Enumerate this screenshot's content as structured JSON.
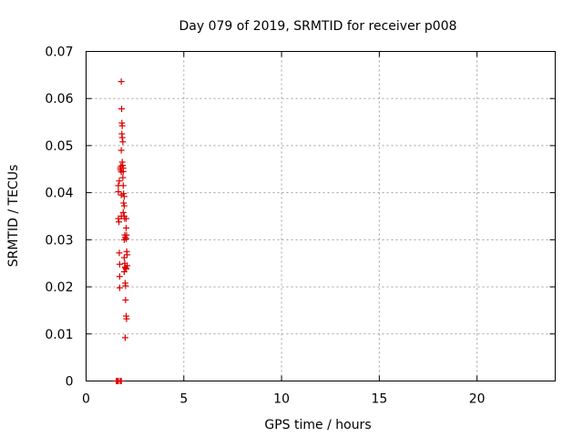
{
  "chart_data": {
    "type": "scatter",
    "title": "Day 079 of 2019, SRMTID for receiver p008",
    "xlabel": "GPS time / hours",
    "ylabel": "SRMTID / TECUs",
    "xlim": [
      0,
      24
    ],
    "ylim": [
      0,
      0.07
    ],
    "xticks": [
      0,
      5,
      10,
      15,
      20
    ],
    "xtick_labels": [
      "0",
      "5",
      "10",
      "15",
      "20"
    ],
    "yticks": [
      0,
      0.01,
      0.02,
      0.03,
      0.04,
      0.05,
      0.06,
      0.07
    ],
    "ytick_labels": [
      "0",
      "0.01",
      "0.02",
      "0.03",
      "0.04",
      "0.05",
      "0.06",
      "0.07"
    ],
    "grid": true,
    "marker": "+",
    "series": [
      {
        "name": "SRMTID",
        "color": "#dd0000",
        "points": [
          [
            1.55,
            0.0
          ],
          [
            1.6,
            0.0
          ],
          [
            1.65,
            0.0
          ],
          [
            1.75,
            0.0
          ],
          [
            1.8,
            0.0
          ],
          [
            1.65,
            0.0415
          ],
          [
            1.65,
            0.0402
          ],
          [
            1.65,
            0.0345
          ],
          [
            1.68,
            0.0338
          ],
          [
            1.7,
            0.0425
          ],
          [
            1.7,
            0.0272
          ],
          [
            1.72,
            0.0248
          ],
          [
            1.72,
            0.0222
          ],
          [
            1.72,
            0.0198
          ],
          [
            1.75,
            0.0452
          ],
          [
            1.77,
            0.0448
          ],
          [
            1.78,
            0.0456
          ],
          [
            1.8,
            0.0444
          ],
          [
            1.8,
            0.0395
          ],
          [
            1.8,
            0.049
          ],
          [
            1.8,
            0.0636
          ],
          [
            1.82,
            0.0578
          ],
          [
            1.83,
            0.0548
          ],
          [
            1.85,
            0.0542
          ],
          [
            1.83,
            0.0525
          ],
          [
            1.85,
            0.0517
          ],
          [
            1.88,
            0.0508
          ],
          [
            1.85,
            0.0465
          ],
          [
            1.87,
            0.0458
          ],
          [
            1.9,
            0.0452
          ],
          [
            1.9,
            0.0445
          ],
          [
            1.88,
            0.0432
          ],
          [
            1.9,
            0.0415
          ],
          [
            1.92,
            0.0398
          ],
          [
            1.95,
            0.0392
          ],
          [
            1.92,
            0.0378
          ],
          [
            1.95,
            0.0372
          ],
          [
            1.9,
            0.0358
          ],
          [
            1.95,
            0.035
          ],
          [
            1.97,
            0.0345
          ],
          [
            1.8,
            0.035
          ],
          [
            1.95,
            0.03
          ],
          [
            1.98,
            0.031
          ],
          [
            2.0,
            0.0305
          ],
          [
            1.95,
            0.0262
          ],
          [
            1.98,
            0.025
          ],
          [
            2.0,
            0.0242
          ],
          [
            2.02,
            0.024
          ],
          [
            1.95,
            0.0232
          ],
          [
            2.0,
            0.0208
          ],
          [
            2.02,
            0.0202
          ],
          [
            2.05,
            0.0345
          ],
          [
            2.05,
            0.0325
          ],
          [
            2.07,
            0.031
          ],
          [
            2.05,
            0.0302
          ],
          [
            2.08,
            0.0275
          ],
          [
            2.1,
            0.0268
          ],
          [
            2.1,
            0.0245
          ],
          [
            2.05,
            0.0238
          ],
          [
            2.02,
            0.0172
          ],
          [
            2.05,
            0.0138
          ],
          [
            2.07,
            0.0132
          ],
          [
            2.0,
            0.0092
          ]
        ]
      }
    ]
  }
}
